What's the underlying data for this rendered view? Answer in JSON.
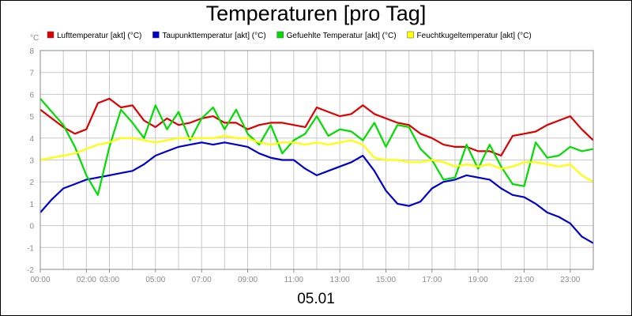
{
  "chart_data": {
    "type": "line",
    "title": "Temperaturen [pro Tag]",
    "date_label": "05.01",
    "y_unit": "°C",
    "ylim": [
      -2,
      8
    ],
    "y_ticks": [
      -2,
      -1,
      0,
      1,
      2,
      3,
      4,
      5,
      6,
      7,
      8
    ],
    "xlim": [
      0,
      24
    ],
    "x_ticks": [
      {
        "pos": 0,
        "label": "00:00"
      },
      {
        "pos": 2,
        "label": "02:00"
      },
      {
        "pos": 3,
        "label": "03:00"
      },
      {
        "pos": 5,
        "label": "05:00"
      },
      {
        "pos": 7,
        "label": "07:00"
      },
      {
        "pos": 9,
        "label": "09:00"
      },
      {
        "pos": 11,
        "label": "11:00"
      },
      {
        "pos": 13,
        "label": "13:00"
      },
      {
        "pos": 15,
        "label": "15:00"
      },
      {
        "pos": 17,
        "label": "17:00"
      },
      {
        "pos": 19,
        "label": "19:00"
      },
      {
        "pos": 21,
        "label": "21:00"
      },
      {
        "pos": 23,
        "label": "23:00"
      }
    ],
    "grid": true,
    "legend_position": "top",
    "series": [
      {
        "name": "Lufttemperatur [akt] (°C)",
        "color": "#dd0000",
        "x": [
          0,
          0.5,
          1,
          1.5,
          2,
          2.5,
          3,
          3.5,
          4,
          4.5,
          5,
          5.5,
          6,
          6.5,
          7,
          7.5,
          8,
          8.5,
          9,
          9.5,
          10,
          10.5,
          11,
          11.5,
          12,
          12.5,
          13,
          13.5,
          14,
          14.5,
          15,
          15.5,
          16,
          16.5,
          17,
          17.5,
          18,
          18.5,
          19,
          19.5,
          20,
          20.5,
          21,
          21.5,
          22,
          22.5,
          23,
          23.5,
          24
        ],
        "y": [
          5.3,
          4.9,
          4.5,
          4.2,
          4.4,
          5.6,
          5.8,
          5.4,
          5.5,
          4.8,
          4.5,
          4.9,
          4.6,
          4.7,
          4.9,
          5.0,
          4.7,
          4.7,
          4.4,
          4.6,
          4.7,
          4.7,
          4.6,
          4.5,
          5.4,
          5.2,
          5.0,
          5.1,
          5.5,
          5.1,
          4.9,
          4.7,
          4.6,
          4.2,
          4.0,
          3.7,
          3.6,
          3.6,
          3.4,
          3.4,
          3.2,
          4.1,
          4.2,
          4.3,
          4.6,
          4.8,
          5.0,
          4.4,
          3.9
        ]
      },
      {
        "name": "Taupunkttemperatur [akt] (°C)",
        "color": "#0000cc",
        "x": [
          0,
          0.5,
          1,
          1.5,
          2,
          2.5,
          3,
          3.5,
          4,
          4.5,
          5,
          5.5,
          6,
          6.5,
          7,
          7.5,
          8,
          8.5,
          9,
          9.5,
          10,
          10.5,
          11,
          11.5,
          12,
          12.5,
          13,
          13.5,
          14,
          14.5,
          15,
          15.5,
          16,
          16.5,
          17,
          17.5,
          18,
          18.5,
          19,
          19.5,
          20,
          20.5,
          21,
          21.5,
          22,
          22.5,
          23,
          23.5,
          24
        ],
        "y": [
          0.6,
          1.2,
          1.7,
          1.9,
          2.1,
          2.2,
          2.3,
          2.4,
          2.5,
          2.8,
          3.2,
          3.4,
          3.6,
          3.7,
          3.8,
          3.7,
          3.8,
          3.7,
          3.6,
          3.3,
          3.1,
          3.0,
          3.0,
          2.6,
          2.3,
          2.5,
          2.7,
          2.9,
          3.2,
          2.5,
          1.6,
          1.0,
          0.9,
          1.1,
          1.7,
          2.0,
          2.1,
          2.3,
          2.2,
          2.1,
          1.7,
          1.4,
          1.3,
          1.0,
          0.6,
          0.4,
          0.1,
          -0.5,
          -0.8
        ]
      },
      {
        "name": "Gefuehlte Temperatur [akt] (°C)",
        "color": "#00dd00",
        "x": [
          0,
          0.5,
          1,
          1.5,
          2,
          2.5,
          3,
          3.5,
          4,
          4.5,
          5,
          5.5,
          6,
          6.5,
          7,
          7.5,
          8,
          8.5,
          9,
          9.5,
          10,
          10.5,
          11,
          11.5,
          12,
          12.5,
          13,
          13.5,
          14,
          14.5,
          15,
          15.5,
          16,
          16.5,
          17,
          17.5,
          18,
          18.5,
          19,
          19.5,
          20,
          20.5,
          21,
          21.5,
          22,
          22.5,
          23,
          23.5,
          24
        ],
        "y": [
          5.8,
          5.2,
          4.6,
          3.6,
          2.3,
          1.4,
          3.6,
          5.3,
          4.7,
          4.0,
          5.5,
          4.4,
          5.2,
          3.9,
          4.9,
          5.4,
          4.4,
          5.3,
          4.2,
          3.7,
          4.6,
          3.3,
          3.9,
          4.2,
          5.0,
          4.1,
          4.4,
          4.3,
          3.9,
          4.7,
          3.6,
          4.6,
          4.5,
          3.5,
          3.0,
          2.1,
          2.2,
          3.7,
          2.6,
          3.7,
          2.7,
          1.9,
          1.8,
          3.8,
          3.1,
          3.2,
          3.6,
          3.4,
          3.5
        ]
      },
      {
        "name": "Feuchtkugeltemperatur [akt] (°C)",
        "color": "#ffff00",
        "x": [
          0,
          0.5,
          1,
          1.5,
          2,
          2.5,
          3,
          3.5,
          4,
          4.5,
          5,
          5.5,
          6,
          6.5,
          7,
          7.5,
          8,
          8.5,
          9,
          9.5,
          10,
          10.5,
          11,
          11.5,
          12,
          12.5,
          13,
          13.5,
          14,
          14.5,
          15,
          15.5,
          16,
          16.5,
          17,
          17.5,
          18,
          18.5,
          19,
          19.5,
          20,
          20.5,
          21,
          21.5,
          22,
          22.5,
          23,
          23.5,
          24
        ],
        "y": [
          3.0,
          3.1,
          3.2,
          3.3,
          3.5,
          3.7,
          3.8,
          4.0,
          4.0,
          3.9,
          3.8,
          3.9,
          4.0,
          4.0,
          4.0,
          4.0,
          4.1,
          4.0,
          4.0,
          3.8,
          3.7,
          3.8,
          3.8,
          3.7,
          3.8,
          3.7,
          3.8,
          3.9,
          3.7,
          3.1,
          3.0,
          3.0,
          2.9,
          2.9,
          3.0,
          2.9,
          2.7,
          2.8,
          2.7,
          2.8,
          2.6,
          2.7,
          2.9,
          2.9,
          2.8,
          2.7,
          2.8,
          2.3,
          2.0
        ]
      }
    ]
  }
}
